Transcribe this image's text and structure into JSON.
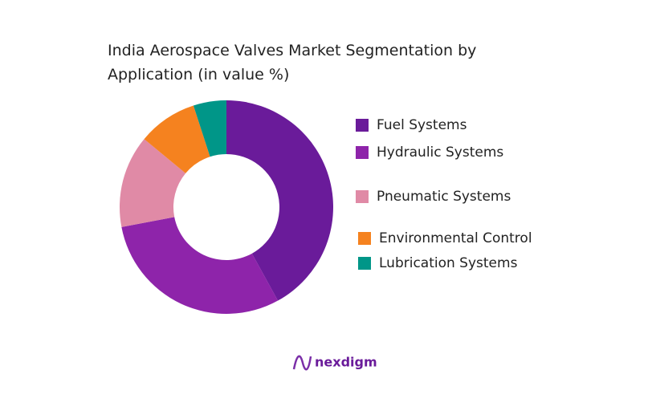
{
  "chart_data": {
    "type": "donut",
    "title": "India Aerospace Valves Market Segmentation by Application (in value %)",
    "categories": [
      "Fuel Systems",
      "Hydraulic Systems",
      "Pneumatic Systems",
      "Environmental Control",
      "Lubrication Systems"
    ],
    "values": [
      42,
      30,
      14,
      9,
      5
    ],
    "colors": [
      "#6a1b9a",
      "#8e24aa",
      "#e08aa6",
      "#f5821f",
      "#009688"
    ],
    "legend": "right"
  },
  "brand": "nexdigm"
}
